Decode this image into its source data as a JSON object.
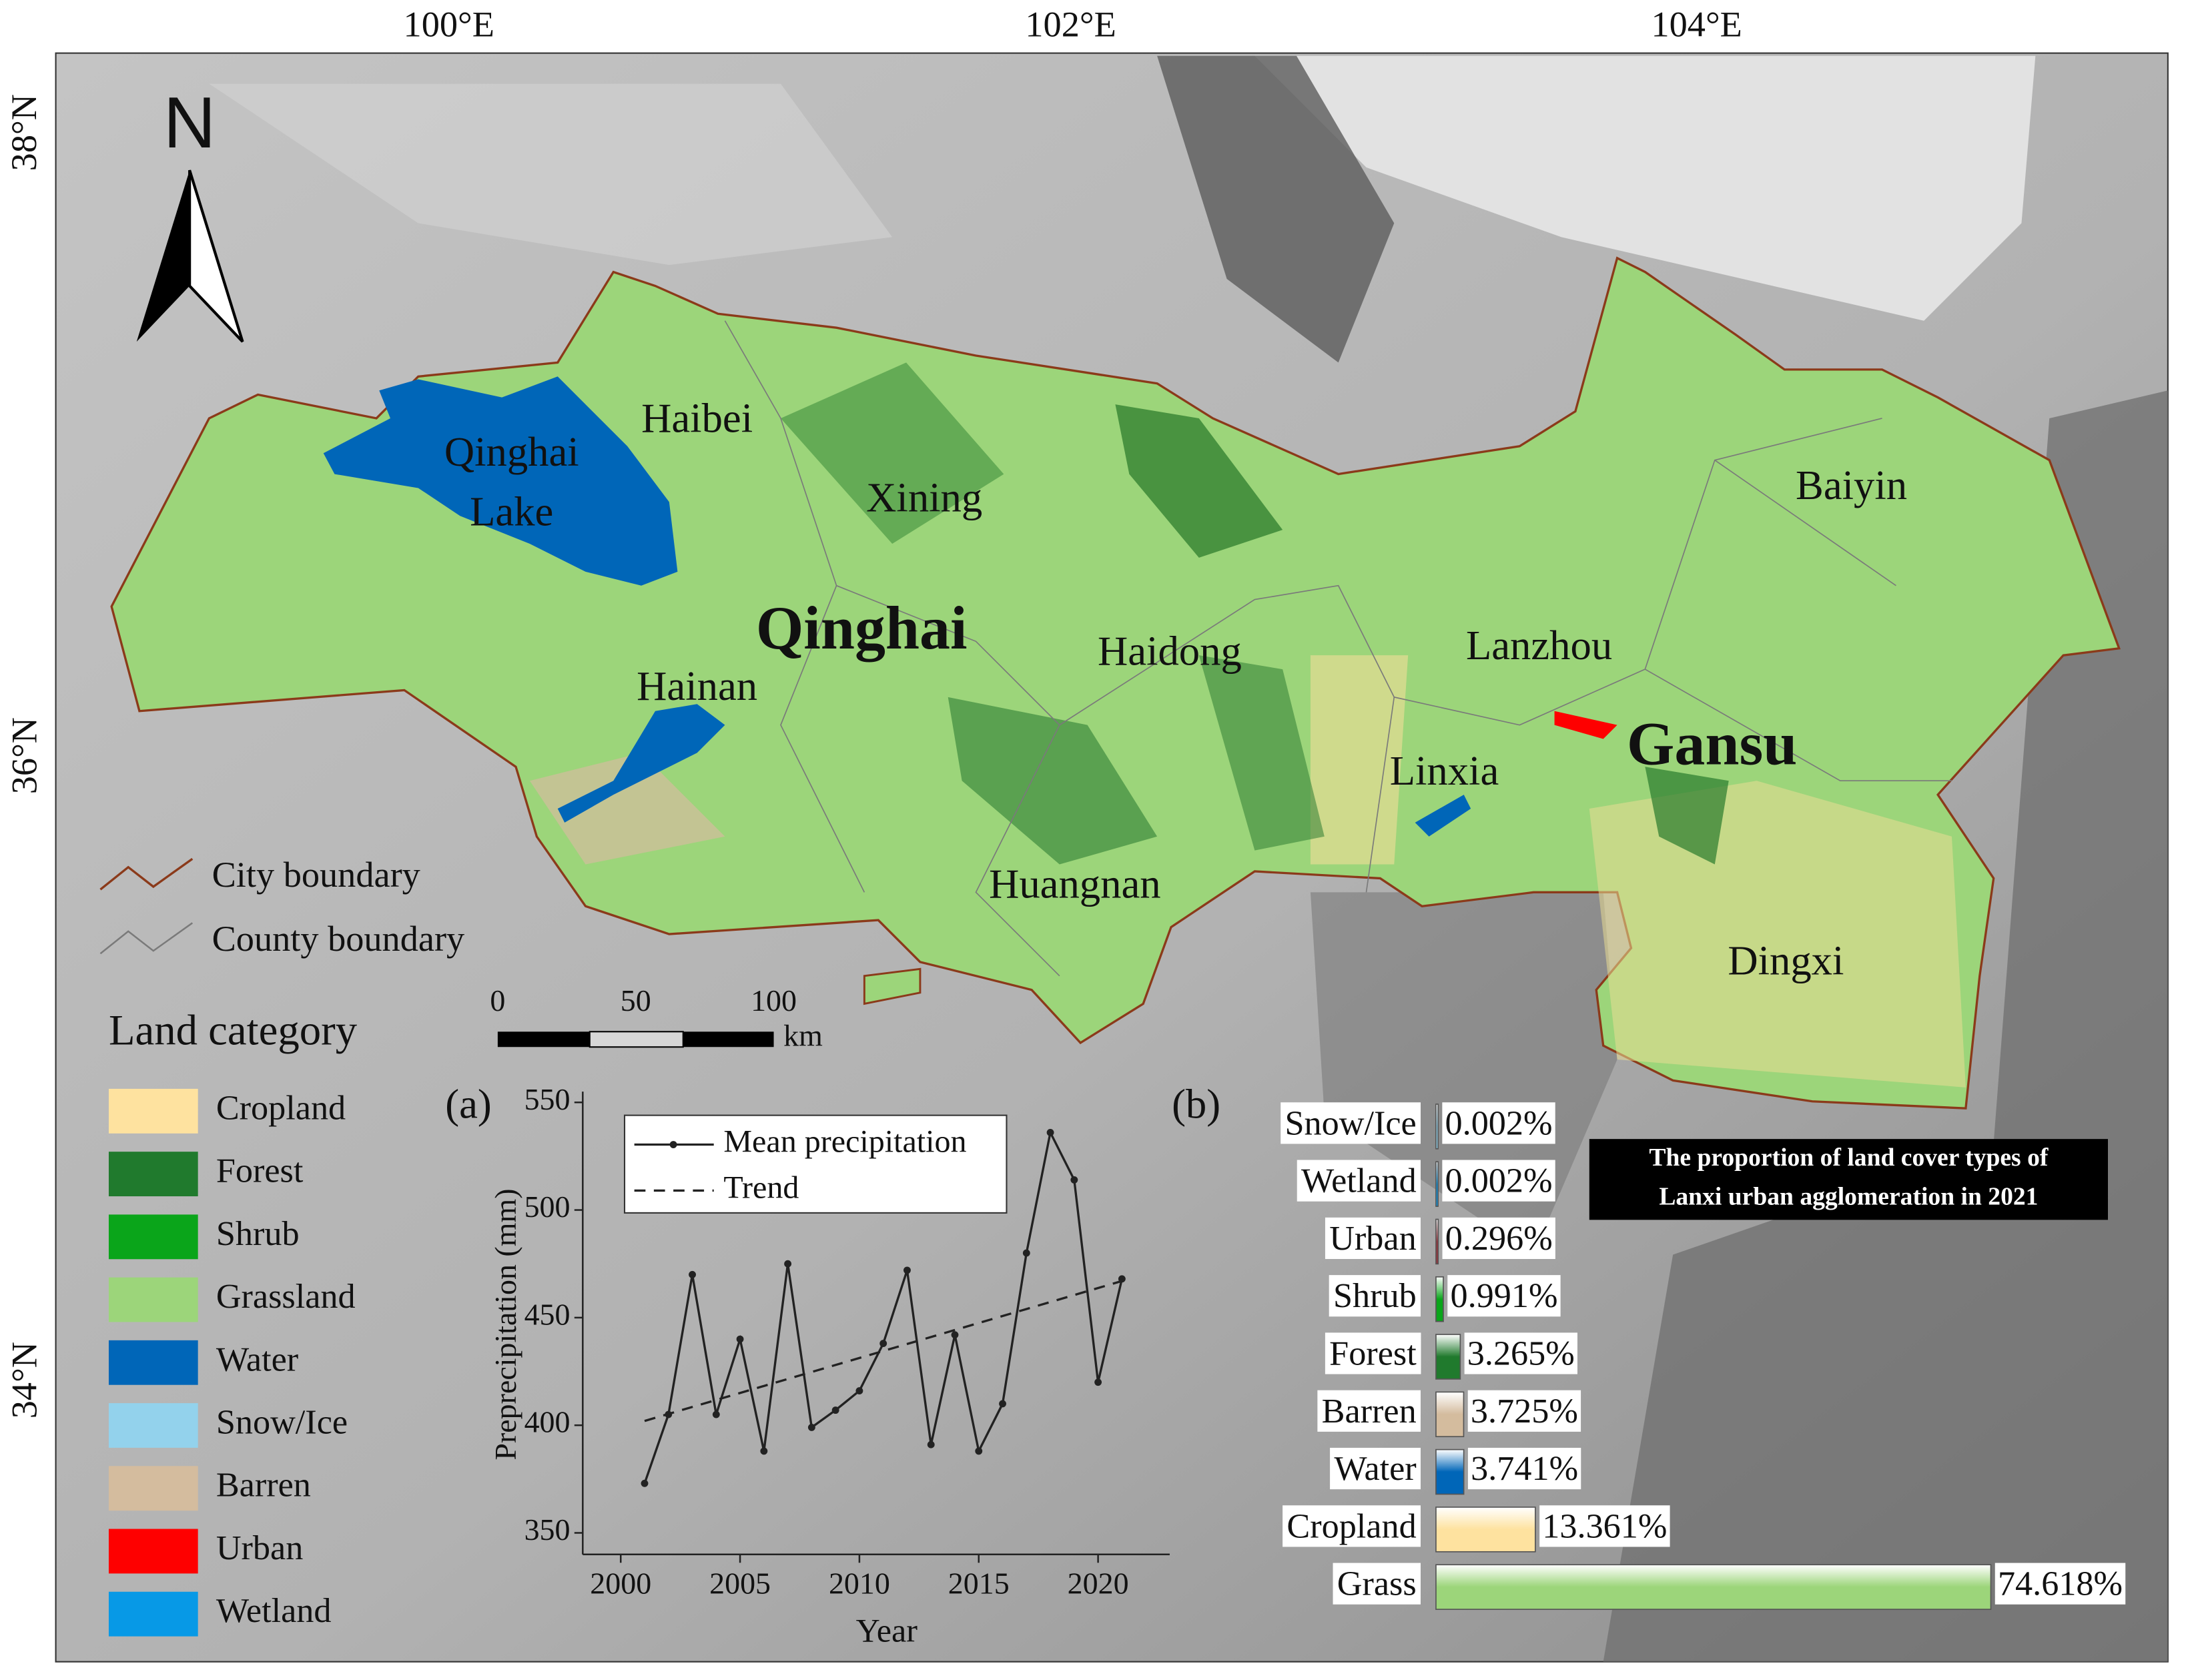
{
  "map": {
    "graticule": {
      "longitude": [
        "100°E",
        "102°E",
        "104°E"
      ],
      "latitude": [
        "38°N",
        "36°N",
        "34°N"
      ]
    },
    "north_arrow": "N",
    "province_labels": [
      "Qinghai",
      "Gansu"
    ],
    "lake_label": [
      "Qinghai",
      "Lake"
    ],
    "place_labels": [
      "Haibei",
      "Xining",
      "Haidong",
      "Hainan",
      "Huangnan",
      "Lanzhou",
      "Baiyin",
      "Linxia",
      "Dingxi"
    ],
    "boundary_legend": [
      "City boundary",
      "County boundary"
    ],
    "land_legend": {
      "title": "Land category",
      "items": [
        {
          "label": "Cropland",
          "color": "#fee29f"
        },
        {
          "label": "Forest",
          "color": "#207a2d"
        },
        {
          "label": "Shrub",
          "color": "#0aa51a"
        },
        {
          "label": "Grassland",
          "color": "#9cd57a"
        },
        {
          "label": "Water",
          "color": "#0066b8"
        },
        {
          "label": "Snow/Ice",
          "color": "#93d2ec"
        },
        {
          "label": "Barren",
          "color": "#d4bc9e"
        },
        {
          "label": "Urban",
          "color": "#fe0000"
        },
        {
          "label": "Wetland",
          "color": "#0799e6"
        }
      ]
    },
    "scale_bar": {
      "ticks": [
        0,
        50,
        100
      ],
      "unit": "km"
    }
  },
  "chart_data": [
    {
      "type": "line",
      "label": "(a)",
      "x_label": "Year",
      "y_label": "Preprecipitation (mm)",
      "x": [
        2001,
        2002,
        2003,
        2004,
        2005,
        2006,
        2007,
        2008,
        2009,
        2010,
        2011,
        2012,
        2013,
        2014,
        2015,
        2016,
        2017,
        2018,
        2019,
        2020,
        2021
      ],
      "series": [
        {
          "name": "Mean precipitation",
          "color": "#222222",
          "markers": true,
          "values": [
            373,
            405,
            470,
            405,
            440,
            388,
            475,
            399,
            407,
            416,
            438,
            472,
            391,
            442,
            388,
            410,
            480,
            536,
            514,
            420,
            468
          ]
        },
        {
          "name": "Trend",
          "color": "#222222",
          "dashed": true,
          "x": [
            2001,
            2021
          ],
          "values": [
            402,
            467
          ]
        }
      ],
      "xlim": [
        1998,
        2023
      ],
      "xticks": [
        2000,
        2005,
        2010,
        2015,
        2020
      ],
      "ylim": [
        340,
        555
      ],
      "yticks": [
        350,
        400,
        450,
        500,
        550
      ]
    },
    {
      "type": "bar",
      "orientation": "horizontal",
      "label": "(b)",
      "title": [
        "The proportion of land cover types of",
        "Lanxi urban agglomeration in 2021"
      ],
      "categories": [
        "Snow/Ice",
        "Wetland",
        "Urban",
        "Shrub",
        "Forest",
        "Barren",
        "Water",
        "Cropland",
        "Grass"
      ],
      "values": [
        0.002,
        0.002,
        0.296,
        0.991,
        3.265,
        3.725,
        3.741,
        13.361,
        74.618
      ],
      "value_labels": [
        "0.002%",
        "0.002%",
        "0.296%",
        "0.991%",
        "3.265%",
        "3.725%",
        "3.741%",
        "13.361%",
        "74.618%"
      ],
      "colors": [
        "#93d2ec",
        "#0799e6",
        "#a0303a",
        "#0aa51a",
        "#207a2d",
        "#d4bc9e",
        "#0066b8",
        "#fee29f",
        "#9cd57a"
      ]
    }
  ]
}
